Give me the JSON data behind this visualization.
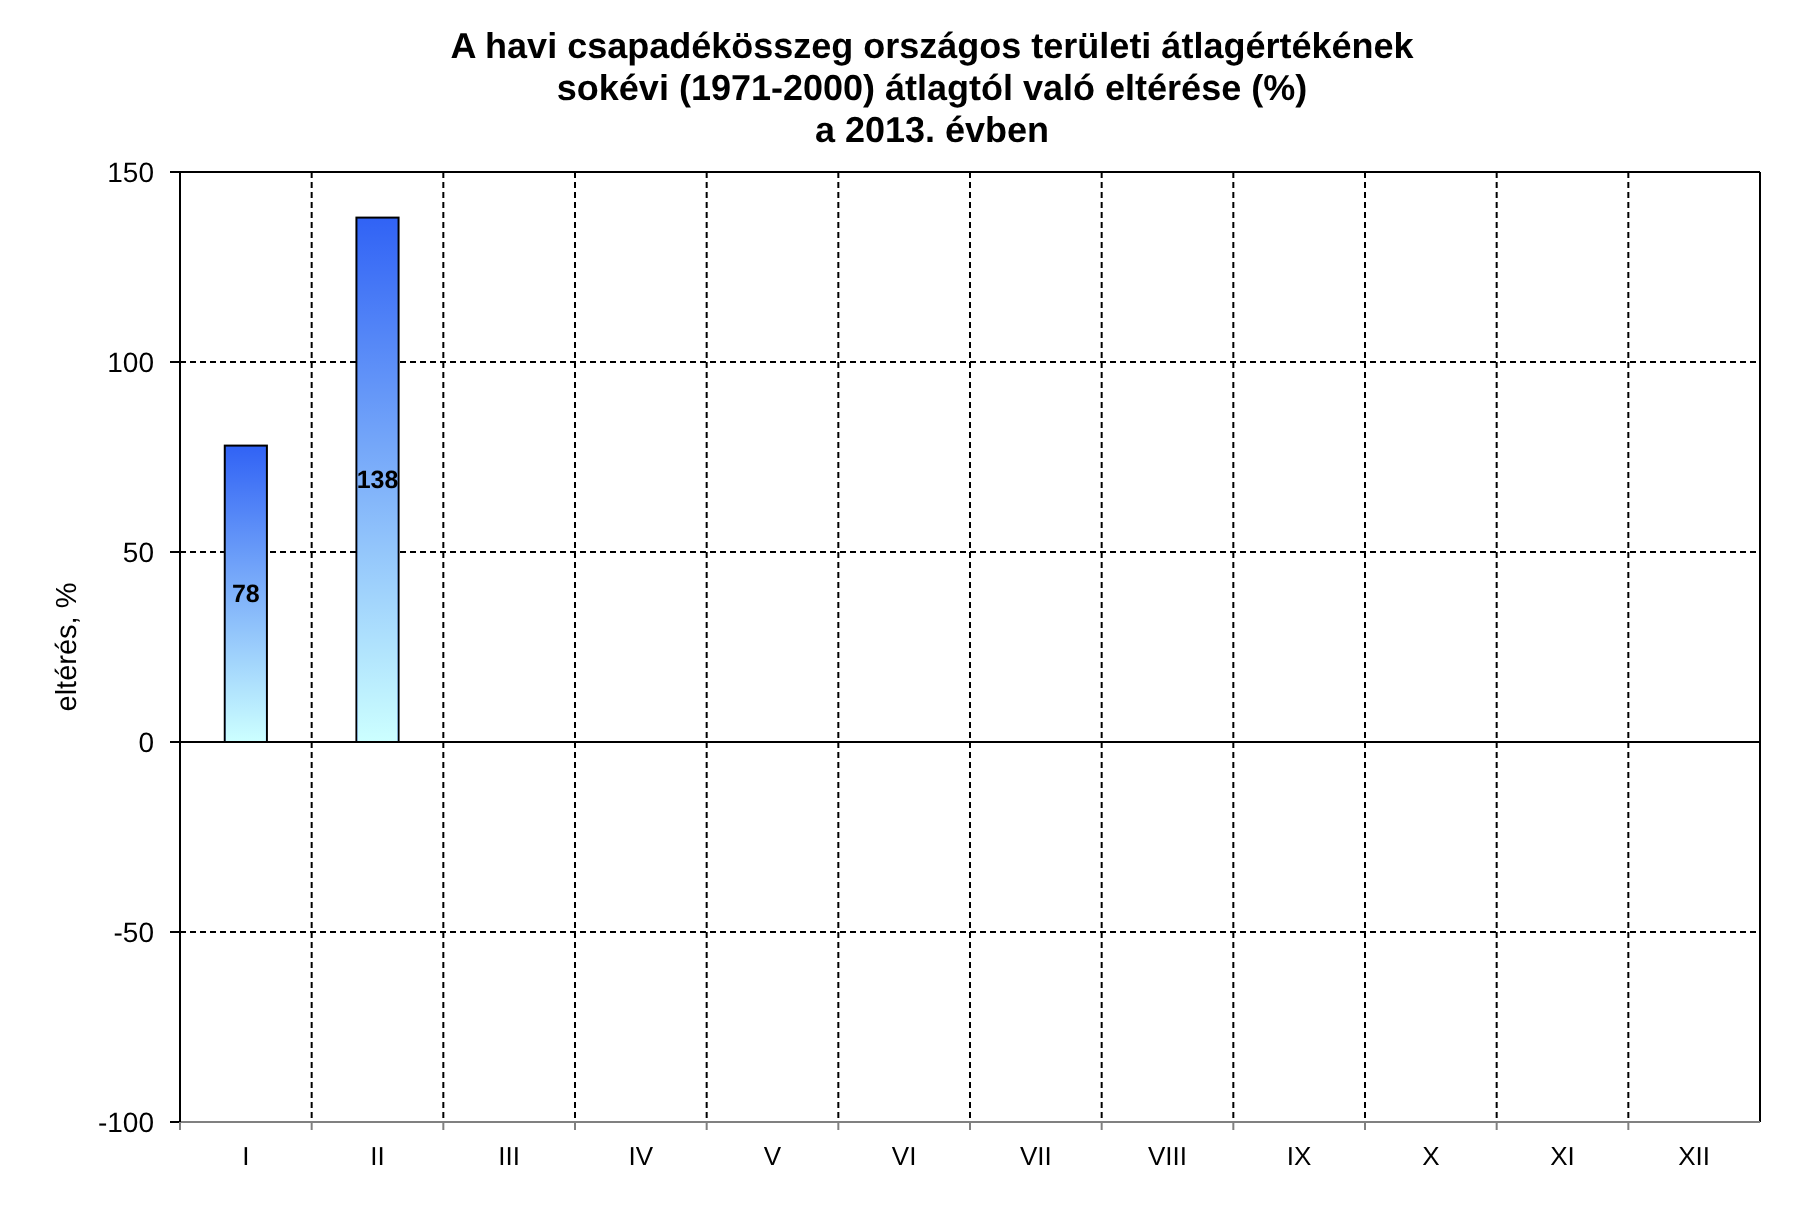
{
  "chart_data": {
    "type": "bar",
    "title": "A havi csapadékösszeg országos területi átlagértékének\nsokévi (1971-2000) átlagtól való eltérése (%)\na 2013. évben",
    "ylabel": "eltérés, %",
    "categories": [
      "I",
      "II",
      "III",
      "IV",
      "V",
      "VI",
      "VII",
      "VIII",
      "IX",
      "X",
      "XI",
      "XII"
    ],
    "values": [
      78,
      138,
      null,
      null,
      null,
      null,
      null,
      null,
      null,
      null,
      null,
      null
    ],
    "color": "#3163f5",
    "ylim": [
      -100,
      150
    ],
    "yticks": [
      -100,
      -50,
      0,
      50,
      100,
      150
    ],
    "grid": true,
    "data_labels": true
  }
}
